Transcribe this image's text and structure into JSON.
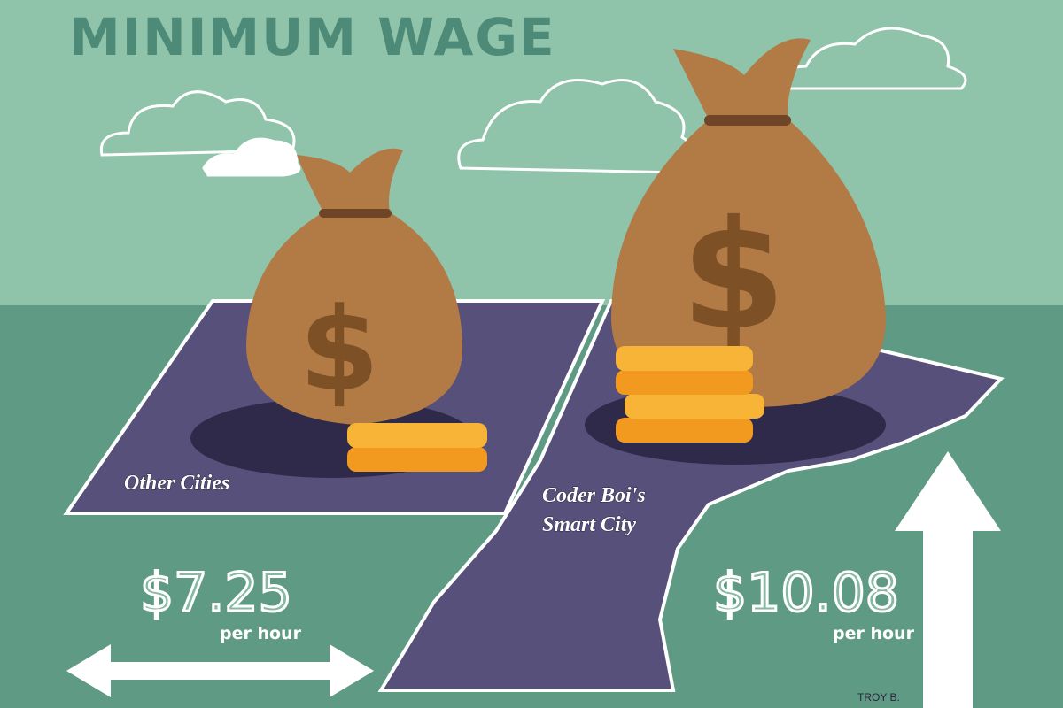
{
  "title": "MINIMUM WAGE",
  "regions": [
    {
      "label": [
        "Other Cities"
      ],
      "wage": "$7.25",
      "unit": "per hour"
    },
    {
      "label": [
        "Coder Boi's",
        "Smart City"
      ],
      "wage": "$10.08",
      "unit": "per hour"
    }
  ],
  "signature": "TROY B."
}
